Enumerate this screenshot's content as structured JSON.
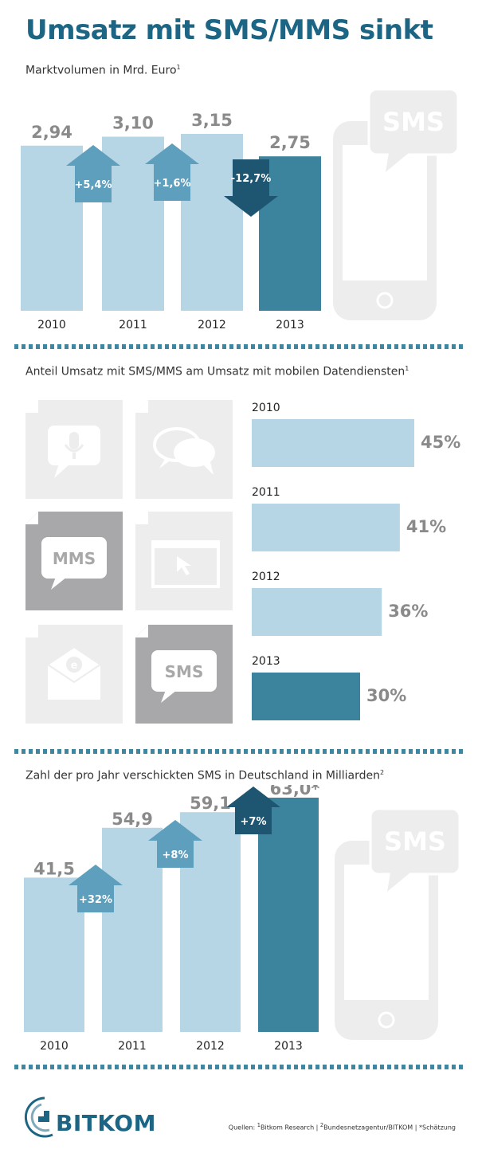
{
  "title": "Umsatz mit SMS/MMS sinkt",
  "colors": {
    "light": "#b6d6e5",
    "dark": "#3c849d",
    "arrow_mid": "#5e9fbd",
    "arrow_dark": "#1e5672",
    "icon_grey": "#ededed",
    "icon_dark": "#a8a8aa",
    "label_grey": "#8a8a8a"
  },
  "chart_data": [
    {
      "type": "bar",
      "title": "Marktvolumen in Mrd. Euro",
      "title_sup": "1",
      "categories": [
        "2010",
        "2011",
        "2012",
        "2013"
      ],
      "values": [
        2.94,
        3.1,
        3.15,
        2.75
      ],
      "value_labels": [
        "2,94",
        "3,10",
        "3,15",
        "2,75"
      ],
      "changes": [
        "+5,4%",
        "+1,6%",
        "-12,7%"
      ],
      "change_direction": [
        "up",
        "up",
        "down"
      ],
      "ylim": [
        0,
        3.5
      ],
      "icon": "SMS"
    },
    {
      "type": "bar",
      "orientation": "horizontal",
      "title": "Anteil Umsatz mit SMS/MMS am Umsatz mit mobilen Datendiensten",
      "title_sup": "1",
      "categories": [
        "2010",
        "2011",
        "2012",
        "2013"
      ],
      "values": [
        45,
        41,
        36,
        30
      ],
      "value_labels": [
        "45%",
        "41%",
        "36%",
        "30%"
      ],
      "icons": [
        {
          "name": "microphone-bubble-icon",
          "label": ""
        },
        {
          "name": "chat-bubbles-icon",
          "label": ""
        },
        {
          "name": "mms-bubble-icon",
          "label": "MMS"
        },
        {
          "name": "browser-window-icon",
          "label": ""
        },
        {
          "name": "email-envelope-icon",
          "label": ""
        },
        {
          "name": "sms-bubble-icon",
          "label": "SMS"
        }
      ]
    },
    {
      "type": "bar",
      "title": "Zahl der pro Jahr verschickten SMS in Deutschland in Milliarden",
      "title_sup": "2",
      "categories": [
        "2010",
        "2011",
        "2012",
        "2013"
      ],
      "values": [
        41.5,
        54.9,
        59.1,
        63.0
      ],
      "value_labels": [
        "41,5",
        "54,9",
        "59,1",
        "63,0*"
      ],
      "changes": [
        "+32%",
        "+8%",
        "+7%"
      ],
      "change_direction": [
        "up",
        "up",
        "up"
      ],
      "icon": "SMS"
    }
  ],
  "footer": {
    "logo": "BITKOM",
    "sources_prefix": "Quellen: ",
    "source1_sup": "1",
    "source1": "Bitkom Research | ",
    "source2_sup": "2",
    "source2": "Bundesnetzagentur/BITKOM | *Schätzung"
  }
}
